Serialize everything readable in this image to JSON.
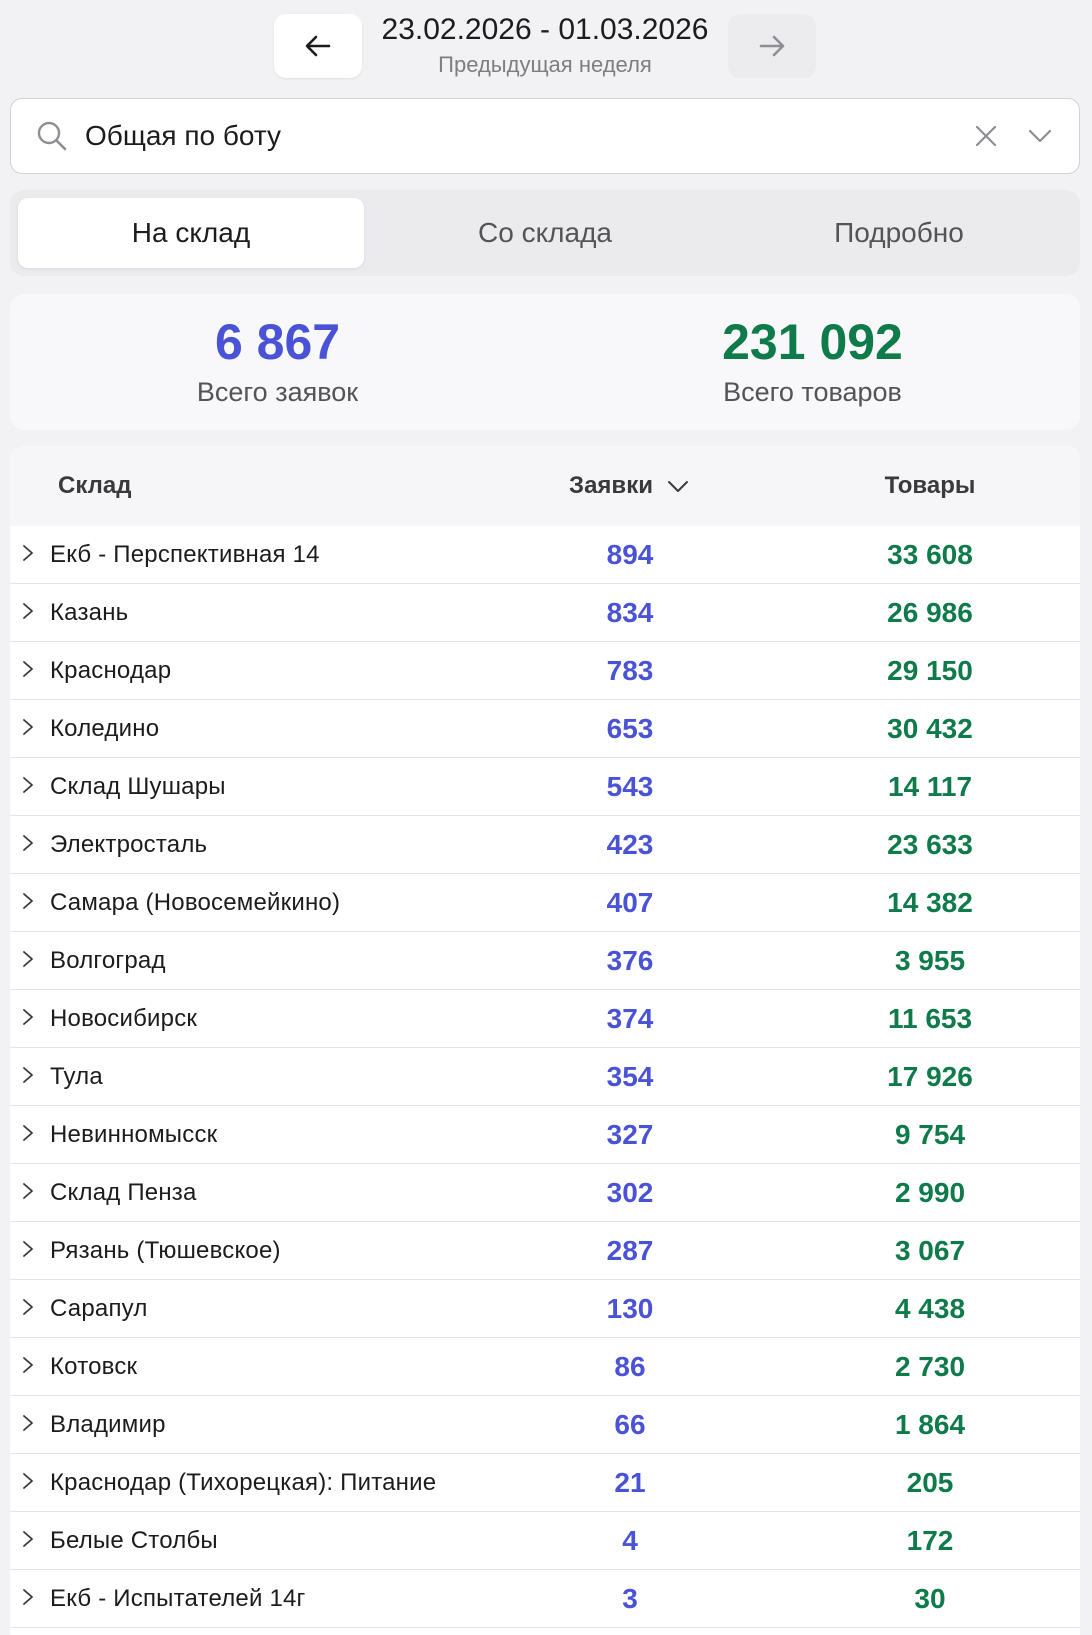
{
  "header": {
    "date_range": "23.02.2026 - 01.03.2026",
    "caption": "Предыдущая неделя",
    "prev_icon": "arrow-left-icon",
    "next_icon": "arrow-right-icon"
  },
  "search": {
    "value": "Общая по боту",
    "icon": "search-icon"
  },
  "tabs": [
    {
      "label": "На склад",
      "active": true
    },
    {
      "label": "Со склада",
      "active": false
    },
    {
      "label": "Подробно",
      "active": false
    }
  ],
  "summary": {
    "orders_value": "6 867",
    "orders_label": "Всего заявок",
    "goods_value": "231 092",
    "goods_label": "Всего товаров"
  },
  "table": {
    "columns": {
      "name": "Склад",
      "orders": "Заявки",
      "goods": "Товары"
    },
    "rows": [
      {
        "name": "Екб - Перспективная 14",
        "orders": "894",
        "goods": "33 608"
      },
      {
        "name": "Казань",
        "orders": "834",
        "goods": "26 986"
      },
      {
        "name": "Краснодар",
        "orders": "783",
        "goods": "29 150"
      },
      {
        "name": "Коледино",
        "orders": "653",
        "goods": "30 432"
      },
      {
        "name": "Склад Шушары",
        "orders": "543",
        "goods": "14 117"
      },
      {
        "name": "Электросталь",
        "orders": "423",
        "goods": "23 633"
      },
      {
        "name": "Самара (Новосемейкино)",
        "orders": "407",
        "goods": "14 382"
      },
      {
        "name": "Волгоград",
        "orders": "376",
        "goods": "3 955"
      },
      {
        "name": "Новосибирск",
        "orders": "374",
        "goods": "11 653"
      },
      {
        "name": "Тула",
        "orders": "354",
        "goods": "17 926"
      },
      {
        "name": "Невинномысск",
        "orders": "327",
        "goods": "9 754"
      },
      {
        "name": "Склад Пенза",
        "orders": "302",
        "goods": "2 990"
      },
      {
        "name": "Рязань (Тюшевское)",
        "orders": "287",
        "goods": "3 067"
      },
      {
        "name": "Сарапул",
        "orders": "130",
        "goods": "4 438"
      },
      {
        "name": "Котовск",
        "orders": "86",
        "goods": "2 730"
      },
      {
        "name": "Владимир",
        "orders": "66",
        "goods": "1 864"
      },
      {
        "name": "Краснодар (Тихорецкая): Питание",
        "orders": "21",
        "goods": "205"
      },
      {
        "name": "Белые Столбы",
        "orders": "4",
        "goods": "172"
      },
      {
        "name": "Екб - Испытателей 14г",
        "orders": "3",
        "goods": "30"
      }
    ]
  },
  "colors": {
    "orders": "#4a52d6",
    "goods": "#0f7a4a"
  }
}
